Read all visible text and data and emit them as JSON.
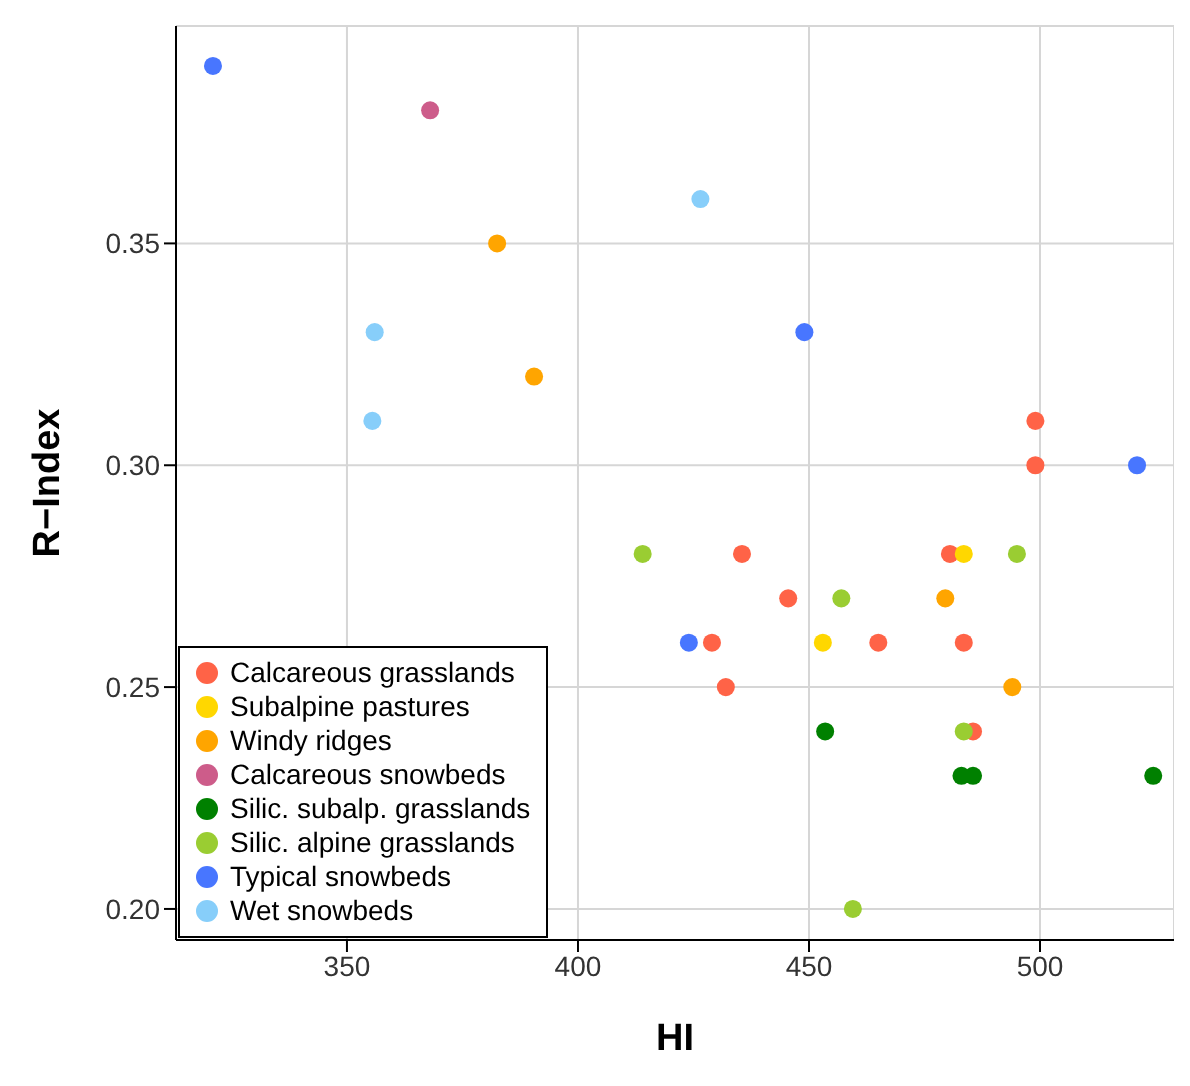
{
  "chart_data": {
    "type": "scatter",
    "xlabel": "HI",
    "ylabel": "R−Index",
    "xlim": [
      313,
      529
    ],
    "ylim": [
      0.193,
      0.399
    ],
    "xticks": [
      350,
      400,
      450,
      500
    ],
    "yticks": [
      {
        "value": 0.2,
        "label": "0.20"
      },
      {
        "value": 0.25,
        "label": "0.25"
      },
      {
        "value": 0.3,
        "label": "0.30"
      },
      {
        "value": 0.35,
        "label": "0.35"
      }
    ],
    "grid": true,
    "legend": "bottom left",
    "marker": "circle",
    "series": [
      {
        "name": "Calcareous grasslands",
        "color": "#ff6347",
        "x": [
          499,
          499,
          435.5,
          480.5,
          445.5,
          465,
          483.5,
          429,
          432,
          485.5
        ],
        "values": [
          0.31,
          0.3,
          0.28,
          0.28,
          0.27,
          0.26,
          0.26,
          0.26,
          0.25,
          0.24
        ]
      },
      {
        "name": "Subalpine pastures",
        "color": "#ffd700",
        "x": [
          483.5,
          453
        ],
        "values": [
          0.28,
          0.26
        ]
      },
      {
        "name": "Windy ridges",
        "color": "#ffa500",
        "x": [
          382.5,
          390.5,
          479.5,
          494
        ],
        "values": [
          0.35,
          0.32,
          0.27,
          0.25
        ]
      },
      {
        "name": "Calcareous snowbeds",
        "color": "#cd5c8a",
        "x": [
          368
        ],
        "values": [
          0.38
        ]
      },
      {
        "name": "Silic. subalp. grasslands",
        "color": "#008000",
        "x": [
          453.5,
          483,
          485.5,
          524.5
        ],
        "values": [
          0.24,
          0.23,
          0.23,
          0.23
        ]
      },
      {
        "name": "Silic. alpine grasslands",
        "color": "#9acd32",
        "x": [
          414,
          457,
          495,
          483.5,
          459.5
        ],
        "values": [
          0.28,
          0.27,
          0.28,
          0.24,
          0.2
        ]
      },
      {
        "name": "Typical snowbeds",
        "color": "#4876ff",
        "x": [
          321,
          449,
          521,
          424
        ],
        "values": [
          0.39,
          0.33,
          0.3,
          0.26
        ]
      },
      {
        "name": "Wet snowbeds",
        "color": "#87cefa",
        "x": [
          426.5,
          356,
          355.5
        ],
        "values": [
          0.36,
          0.33,
          0.31
        ]
      }
    ]
  }
}
